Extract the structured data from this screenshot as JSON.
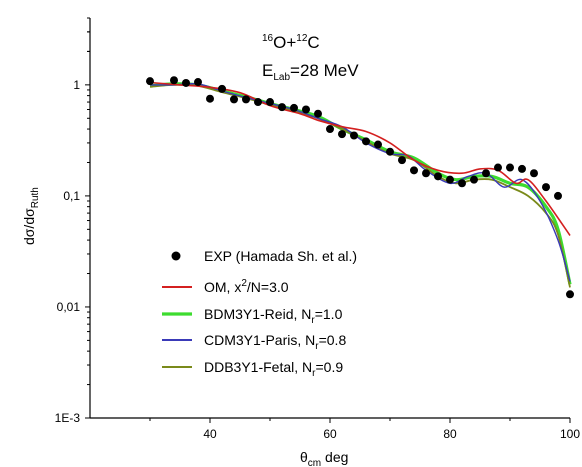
{
  "chart_data": {
    "type": "line",
    "annotations": {
      "reaction": {
        "pre": "16",
        "a": "O+",
        "pre2": "12",
        "b": "C"
      },
      "energy": {
        "main": "E",
        "sub": "Lab",
        "rest": "=28 MeV"
      }
    },
    "xlabel": {
      "main": "θ",
      "sub": "cm",
      "rest": " deg"
    },
    "ylabel": {
      "main": "dσ/dσ",
      "sub": "Ruth"
    },
    "xlim": [
      20,
      100
    ],
    "ylim": [
      0.001,
      4
    ],
    "yscale": "log",
    "x_ticks": [
      {
        "value": 40,
        "label": "40"
      },
      {
        "value": 60,
        "label": "60"
      },
      {
        "value": 80,
        "label": "80"
      },
      {
        "value": 100,
        "label": "100"
      }
    ],
    "y_ticks": [
      {
        "value": 1,
        "label": "1"
      },
      {
        "value": 0.1,
        "label": "0,1"
      },
      {
        "value": 0.01,
        "label": "0,01"
      },
      {
        "value": 0.001,
        "label": "1E-3"
      }
    ],
    "legend_position": "center-bottom",
    "scatter": {
      "name": "EXP (Hamada Sh. et al.)",
      "color": "#000000",
      "points": [
        [
          30,
          1.08
        ],
        [
          34,
          1.1
        ],
        [
          36,
          1.04
        ],
        [
          38,
          1.06
        ],
        [
          40,
          0.75
        ],
        [
          42,
          0.92
        ],
        [
          44,
          0.74
        ],
        [
          46,
          0.74
        ],
        [
          48,
          0.7
        ],
        [
          50,
          0.7
        ],
        [
          52,
          0.63
        ],
        [
          54,
          0.62
        ],
        [
          56,
          0.6
        ],
        [
          58,
          0.55
        ],
        [
          60,
          0.4
        ],
        [
          62,
          0.36
        ],
        [
          64,
          0.35
        ],
        [
          66,
          0.31
        ],
        [
          68,
          0.29
        ],
        [
          70,
          0.25
        ],
        [
          72,
          0.21
        ],
        [
          74,
          0.17
        ],
        [
          76,
          0.16
        ],
        [
          78,
          0.15
        ],
        [
          80,
          0.14
        ],
        [
          82,
          0.13
        ],
        [
          84,
          0.14
        ],
        [
          86,
          0.16
        ],
        [
          88,
          0.18
        ],
        [
          90,
          0.18
        ],
        [
          92,
          0.175
        ],
        [
          94,
          0.16
        ],
        [
          96,
          0.12
        ],
        [
          98,
          0.1
        ],
        [
          100,
          0.013
        ]
      ]
    },
    "series": [
      {
        "name": {
          "pre": "OM, x",
          "sup": "2",
          "post": "/N=3.0"
        },
        "color": "#d42020",
        "width": 1.6,
        "points": [
          [
            30,
            1.05
          ],
          [
            35,
            1.0
          ],
          [
            40,
            0.95
          ],
          [
            45,
            0.85
          ],
          [
            50,
            0.65
          ],
          [
            55,
            0.55
          ],
          [
            58,
            0.48
          ],
          [
            62,
            0.42
          ],
          [
            66,
            0.38
          ],
          [
            70,
            0.3
          ],
          [
            74,
            0.21
          ],
          [
            78,
            0.17
          ],
          [
            82,
            0.16
          ],
          [
            85,
            0.175
          ],
          [
            88,
            0.17
          ],
          [
            91,
            0.13
          ],
          [
            93,
            0.14
          ],
          [
            96,
            0.09
          ],
          [
            100,
            0.044
          ]
        ]
      },
      {
        "name": {
          "pre": "BDM3Y1-Reid, N",
          "sub": "r",
          "post": "=1.0"
        },
        "color": "#3ddc2f",
        "width": 3.2,
        "points": [
          [
            30,
            0.98
          ],
          [
            34,
            1.02
          ],
          [
            38,
            1.0
          ],
          [
            42,
            0.88
          ],
          [
            46,
            0.78
          ],
          [
            50,
            0.68
          ],
          [
            54,
            0.6
          ],
          [
            58,
            0.52
          ],
          [
            62,
            0.4
          ],
          [
            66,
            0.32
          ],
          [
            70,
            0.25
          ],
          [
            74,
            0.22
          ],
          [
            78,
            0.16
          ],
          [
            81,
            0.14
          ],
          [
            84,
            0.15
          ],
          [
            87,
            0.15
          ],
          [
            90,
            0.13
          ],
          [
            93,
            0.12
          ],
          [
            96,
            0.08
          ],
          [
            98,
            0.05
          ],
          [
            100,
            0.016
          ]
        ]
      },
      {
        "name": {
          "pre": "CDM3Y1-Paris, N",
          "sub": "r",
          "post": "=0.8"
        },
        "color": "#3a3ab8",
        "width": 1.4,
        "points": [
          [
            30,
            1.0
          ],
          [
            34,
            1.0
          ],
          [
            38,
            1.02
          ],
          [
            42,
            0.88
          ],
          [
            46,
            0.77
          ],
          [
            50,
            0.68
          ],
          [
            54,
            0.6
          ],
          [
            58,
            0.5
          ],
          [
            62,
            0.42
          ],
          [
            66,
            0.3
          ],
          [
            70,
            0.24
          ],
          [
            73,
            0.23
          ],
          [
            76,
            0.17
          ],
          [
            80,
            0.13
          ],
          [
            83,
            0.15
          ],
          [
            86,
            0.16
          ],
          [
            89,
            0.12
          ],
          [
            92,
            0.14
          ],
          [
            95,
            0.09
          ],
          [
            98,
            0.04
          ],
          [
            100,
            0.017
          ]
        ]
      },
      {
        "name": {
          "pre": "DDB3Y1-Fetal, N",
          "sub": "r",
          "post": "=0.9"
        },
        "color": "#7a8a1a",
        "width": 1.8,
        "points": [
          [
            30,
            0.96
          ],
          [
            34,
            1.0
          ],
          [
            38,
            0.98
          ],
          [
            42,
            0.86
          ],
          [
            46,
            0.76
          ],
          [
            50,
            0.66
          ],
          [
            54,
            0.58
          ],
          [
            58,
            0.5
          ],
          [
            62,
            0.4
          ],
          [
            66,
            0.31
          ],
          [
            70,
            0.24
          ],
          [
            74,
            0.21
          ],
          [
            78,
            0.15
          ],
          [
            81,
            0.13
          ],
          [
            84,
            0.14
          ],
          [
            87,
            0.14
          ],
          [
            90,
            0.12
          ],
          [
            93,
            0.1
          ],
          [
            96,
            0.07
          ],
          [
            98,
            0.045
          ],
          [
            100,
            0.015
          ]
        ]
      }
    ]
  }
}
